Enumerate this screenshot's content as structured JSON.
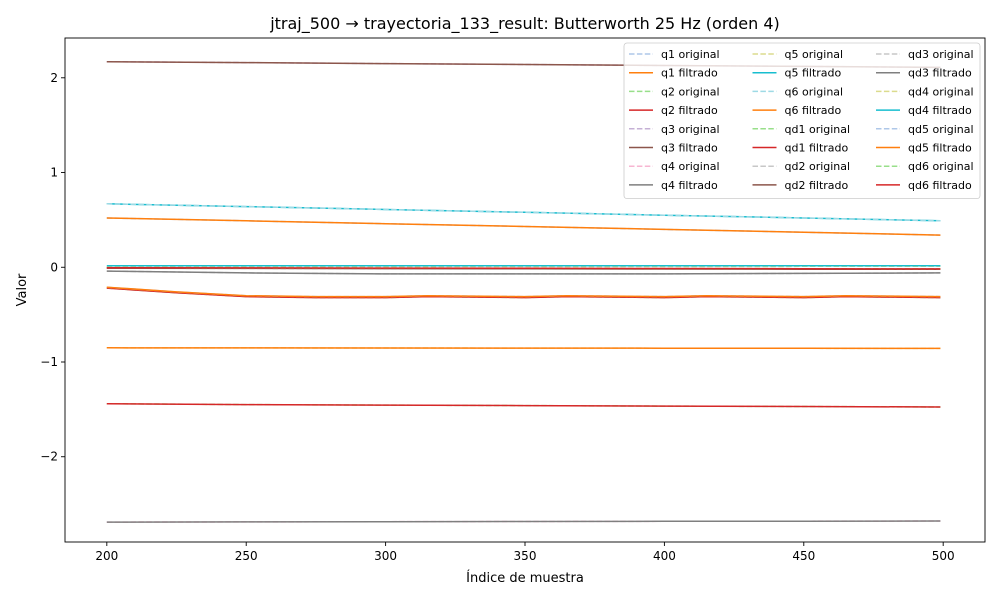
{
  "chart_data": {
    "type": "line",
    "title": "jtraj_500 → trayectoria_133_result: Butterworth 25 Hz (orden 4)",
    "xlabel": "Índice de muestra",
    "ylabel": "Valor",
    "xlim": [
      185,
      515
    ],
    "ylim": [
      -2.9,
      2.42
    ],
    "xticks": [
      200,
      250,
      300,
      350,
      400,
      450,
      500
    ],
    "yticks": [
      -2,
      -1,
      0,
      1,
      2
    ],
    "ytick_labels": [
      "−2",
      "−1",
      "0",
      "1",
      "2"
    ],
    "grid": false,
    "legend": {
      "placement": "top-right",
      "columns": 3
    },
    "series": [
      {
        "name": "q1 original",
        "color": "#aec7e8",
        "style": "dashed",
        "x": [
          200,
          250,
          300,
          350,
          400,
          450,
          499
        ],
        "y": [
          0.52,
          0.49,
          0.46,
          0.43,
          0.4,
          0.37,
          0.34
        ]
      },
      {
        "name": "q1 filtrado",
        "color": "#ff7f0e",
        "style": "solid",
        "x": [
          200,
          250,
          300,
          350,
          400,
          450,
          499
        ],
        "y": [
          0.52,
          0.49,
          0.46,
          0.43,
          0.4,
          0.37,
          0.34
        ]
      },
      {
        "name": "q2 original",
        "color": "#98df8a",
        "style": "dashed",
        "x": [
          200,
          250,
          300,
          350,
          400,
          450,
          499
        ],
        "y": [
          -1.44,
          -1.45,
          -1.455,
          -1.46,
          -1.465,
          -1.47,
          -1.475
        ]
      },
      {
        "name": "q2 filtrado",
        "color": "#d62728",
        "style": "solid",
        "x": [
          200,
          250,
          300,
          350,
          400,
          450,
          499
        ],
        "y": [
          -1.44,
          -1.45,
          -1.455,
          -1.46,
          -1.465,
          -1.47,
          -1.475
        ]
      },
      {
        "name": "q3 original",
        "color": "#c5b0d5",
        "style": "dashed",
        "x": [
          200,
          250,
          300,
          350,
          400,
          450,
          499
        ],
        "y": [
          2.17,
          2.16,
          2.15,
          2.14,
          2.13,
          2.12,
          2.11
        ]
      },
      {
        "name": "q3 filtrado",
        "color": "#8c564b",
        "style": "solid",
        "x": [
          200,
          250,
          300,
          350,
          400,
          450,
          499
        ],
        "y": [
          2.17,
          2.16,
          2.15,
          2.14,
          2.13,
          2.12,
          2.11
        ]
      },
      {
        "name": "q4 original",
        "color": "#f7b6d2",
        "style": "dashed",
        "x": [
          200,
          250,
          300,
          350,
          400,
          450,
          499
        ],
        "y": [
          -2.69,
          -2.688,
          -2.686,
          -2.684,
          -2.682,
          -2.68,
          -2.678
        ]
      },
      {
        "name": "q4 filtrado",
        "color": "#7f7f7f",
        "style": "solid",
        "x": [
          200,
          250,
          300,
          350,
          400,
          450,
          499
        ],
        "y": [
          -2.69,
          -2.688,
          -2.686,
          -2.684,
          -2.682,
          -2.68,
          -2.678
        ]
      },
      {
        "name": "q5 original",
        "color": "#dbdb8d",
        "style": "dashed",
        "x": [
          200,
          250,
          300,
          350,
          400,
          450,
          499
        ],
        "y": [
          -0.85,
          -0.851,
          -0.852,
          -0.853,
          -0.854,
          -0.855,
          -0.856
        ]
      },
      {
        "name": "q5 filtrado",
        "color": "#17becf",
        "style": "solid",
        "x": [
          200,
          250,
          300,
          350,
          400,
          450,
          499
        ],
        "y": [
          0.67,
          0.64,
          0.61,
          0.58,
          0.55,
          0.52,
          0.49
        ]
      },
      {
        "name": "q6 original",
        "color": "#9edae5",
        "style": "dashed",
        "x": [
          200,
          250,
          300,
          350,
          400,
          450,
          499
        ],
        "y": [
          0.67,
          0.64,
          0.61,
          0.58,
          0.55,
          0.52,
          0.49
        ]
      },
      {
        "name": "q6 filtrado",
        "color": "#ff7f0e",
        "style": "solid",
        "x": [
          200,
          250,
          300,
          350,
          400,
          450,
          499
        ],
        "y": [
          -0.85,
          -0.851,
          -0.852,
          -0.853,
          -0.854,
          -0.855,
          -0.856
        ]
      },
      {
        "name": "qd1 original",
        "color": "#98df8a",
        "style": "dashed",
        "x": [
          200,
          225,
          250,
          275,
          300,
          315,
          350,
          365,
          400,
          415,
          450,
          465,
          499
        ],
        "y": [
          -0.22,
          -0.27,
          -0.31,
          -0.32,
          -0.32,
          -0.31,
          -0.32,
          -0.31,
          -0.32,
          -0.31,
          -0.32,
          -0.31,
          -0.32
        ]
      },
      {
        "name": "qd1 filtrado",
        "color": "#d62728",
        "style": "solid",
        "x": [
          200,
          225,
          250,
          275,
          300,
          315,
          350,
          365,
          400,
          415,
          450,
          465,
          499
        ],
        "y": [
          -0.22,
          -0.27,
          -0.31,
          -0.32,
          -0.32,
          -0.31,
          -0.32,
          -0.31,
          -0.32,
          -0.31,
          -0.32,
          -0.31,
          -0.32
        ]
      },
      {
        "name": "qd2 original",
        "color": "#c7c7c7",
        "style": "dashed",
        "x": [
          200,
          250,
          300,
          350,
          400,
          450,
          499
        ],
        "y": [
          -0.01,
          -0.012,
          -0.014,
          -0.016,
          -0.018,
          -0.02,
          -0.022
        ]
      },
      {
        "name": "qd2 filtrado",
        "color": "#8c564b",
        "style": "solid",
        "x": [
          200,
          250,
          300,
          350,
          400,
          450,
          499
        ],
        "y": [
          -0.01,
          -0.012,
          -0.014,
          -0.016,
          -0.018,
          -0.02,
          -0.022
        ]
      },
      {
        "name": "qd3 original",
        "color": "#c7c7c7",
        "style": "dashed",
        "x": [
          200,
          250,
          300,
          350,
          400,
          450,
          499
        ],
        "y": [
          -0.04,
          -0.06,
          -0.07,
          -0.07,
          -0.07,
          -0.065,
          -0.06
        ]
      },
      {
        "name": "qd3 filtrado",
        "color": "#7f7f7f",
        "style": "solid",
        "x": [
          200,
          250,
          300,
          350,
          400,
          450,
          499
        ],
        "y": [
          -0.04,
          -0.06,
          -0.07,
          -0.07,
          -0.07,
          -0.065,
          -0.06
        ]
      },
      {
        "name": "qd4 original",
        "color": "#dbdb8d",
        "style": "dashed",
        "x": [
          200,
          250,
          300,
          350,
          400,
          450,
          499
        ],
        "y": [
          0.005,
          0.006,
          0.007,
          0.008,
          0.009,
          0.01,
          0.011
        ]
      },
      {
        "name": "qd4 filtrado",
        "color": "#17becf",
        "style": "solid",
        "x": [
          200,
          250,
          300,
          350,
          400,
          450,
          499
        ],
        "y": [
          0.015,
          0.015,
          0.015,
          0.015,
          0.015,
          0.015,
          0.015
        ]
      },
      {
        "name": "qd5 original",
        "color": "#aec7e8",
        "style": "dashed",
        "x": [
          200,
          225,
          250,
          275,
          300,
          315,
          350,
          365,
          400,
          415,
          450,
          465,
          499
        ],
        "y": [
          -0.21,
          -0.26,
          -0.3,
          -0.31,
          -0.31,
          -0.3,
          -0.31,
          -0.3,
          -0.31,
          -0.3,
          -0.31,
          -0.3,
          -0.31
        ]
      },
      {
        "name": "qd5 filtrado",
        "color": "#ff7f0e",
        "style": "solid",
        "x": [
          200,
          225,
          250,
          275,
          300,
          315,
          350,
          365,
          400,
          415,
          450,
          465,
          499
        ],
        "y": [
          -0.21,
          -0.26,
          -0.3,
          -0.31,
          -0.31,
          -0.3,
          -0.31,
          -0.3,
          -0.31,
          -0.3,
          -0.31,
          -0.3,
          -0.31
        ]
      },
      {
        "name": "qd6 original",
        "color": "#98df8a",
        "style": "dashed",
        "x": [
          200,
          250,
          300,
          350,
          400,
          450,
          499
        ],
        "y": [
          -0.005,
          -0.007,
          -0.009,
          -0.011,
          -0.013,
          -0.015,
          -0.017
        ]
      },
      {
        "name": "qd6 filtrado",
        "color": "#d62728",
        "style": "solid",
        "x": [
          200,
          250,
          300,
          350,
          400,
          450,
          499
        ],
        "y": [
          -0.005,
          -0.007,
          -0.009,
          -0.011,
          -0.013,
          -0.015,
          -0.017
        ]
      }
    ]
  }
}
